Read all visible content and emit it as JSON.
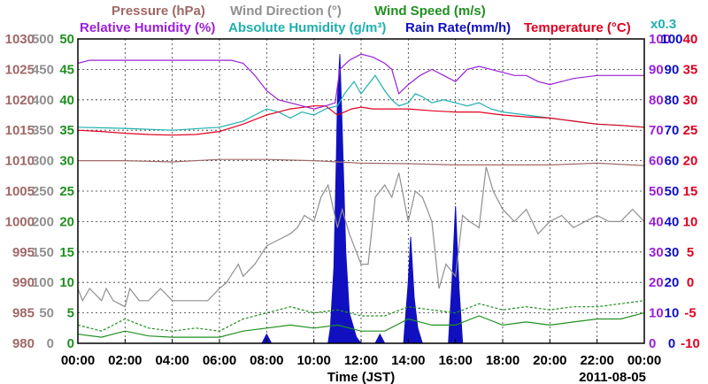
{
  "chart_data": {
    "type": "line",
    "date_label": "2011-08-05",
    "xlabel": "Time (JST)",
    "x_ticks": [
      "00:00",
      "02:00",
      "04:00",
      "06:00",
      "08:00",
      "10:00",
      "12:00",
      "14:00",
      "16:00",
      "18:00",
      "20:00",
      "22:00",
      "00:00"
    ],
    "xlim_hours": [
      0,
      24
    ],
    "grid": true,
    "legend": {
      "row1": [
        {
          "key": "pressure",
          "label": "Pressure (hPa)",
          "color": "#a06868"
        },
        {
          "key": "wind_dir",
          "label": "Wind Direction (°)",
          "color": "#909090"
        },
        {
          "key": "wind_speed",
          "label": "Wind Speed (m/s)",
          "color": "#209020"
        }
      ],
      "row2": [
        {
          "key": "rh",
          "label": "Relative Humidity (%)",
          "color": "#9a20d8"
        },
        {
          "key": "ah",
          "label": "Absolute Humidity (g/m³)",
          "color": "#20b0b0"
        },
        {
          "key": "rain",
          "label": "Rain Rate(mm/h)",
          "color": "#1010c0"
        },
        {
          "key": "temp",
          "label": "Temperature (°C)",
          "color": "#e00020"
        }
      ],
      "note": "x0.3"
    },
    "axes": [
      {
        "key": "pressure",
        "side": "left",
        "color": "#a06868",
        "ylim": [
          980,
          1030
        ],
        "ticks": [
          "980",
          "985",
          "990",
          "995",
          "1000",
          "1005",
          "1010",
          "1015",
          "1020",
          "1025",
          "1030"
        ]
      },
      {
        "key": "wind_dir",
        "side": "left",
        "color": "#909090",
        "ylim": [
          0,
          500
        ],
        "ticks": [
          "0",
          "50",
          "100",
          "150",
          "200",
          "250",
          "300",
          "350",
          "400",
          "450",
          "500"
        ]
      },
      {
        "key": "wind_speed",
        "side": "left",
        "color": "#209020",
        "ylim": [
          0,
          50
        ],
        "ticks": [
          "0",
          "5",
          "10",
          "15",
          "20",
          "25",
          "30",
          "35",
          "40",
          "45",
          "50"
        ]
      },
      {
        "key": "rh",
        "side": "right",
        "color": "#9a20d8",
        "ylim": [
          0,
          100
        ],
        "ticks": [
          "0",
          "10",
          "20",
          "30",
          "40",
          "50",
          "60",
          "70",
          "80",
          "90",
          "100"
        ]
      },
      {
        "key": "rain",
        "side": "right",
        "color": "#1010c0",
        "ylim": [
          0,
          100
        ],
        "ticks": [
          "0",
          "10",
          "20",
          "30",
          "40",
          "50",
          "60",
          "70",
          "80",
          "90",
          "100"
        ]
      },
      {
        "key": "temp",
        "side": "right",
        "color": "#e00020",
        "ylim": [
          -10,
          40
        ],
        "ticks": [
          "-10",
          "-5",
          "0",
          "5",
          "10",
          "15",
          "20",
          "25",
          "30",
          "35",
          "40"
        ]
      }
    ],
    "series": [
      {
        "key": "pressure",
        "axis": "pressure",
        "style": "solid",
        "x": [
          0,
          2,
          4,
          6,
          8,
          10,
          12,
          14,
          16,
          18,
          20,
          22,
          24
        ],
        "y": [
          1010,
          1010,
          1009.8,
          1010.2,
          1010.2,
          1010,
          1009.6,
          1009.5,
          1009.3,
          1009.3,
          1009.3,
          1009.6,
          1009.2
        ]
      },
      {
        "key": "wind_dir",
        "axis": "wind_dir",
        "style": "solid",
        "x": [
          0,
          0.2,
          0.5,
          1,
          1.2,
          1.5,
          2,
          2.2,
          2.6,
          3,
          3.5,
          4,
          4.5,
          5,
          5.5,
          6,
          6.3,
          6.8,
          7,
          7.5,
          8,
          8.5,
          9,
          9.3,
          9.6,
          10,
          10.3,
          10.6,
          11,
          11.2,
          11.5,
          12,
          12.3,
          12.6,
          13,
          13.3,
          13.6,
          14,
          14.3,
          14.6,
          15,
          15.3,
          15.6,
          16,
          16.3,
          16.6,
          17,
          17.3,
          17.6,
          18,
          18.5,
          19,
          19.5,
          20,
          20.5,
          21,
          21.5,
          22,
          22.5,
          23,
          23.5,
          24
        ],
        "y": [
          90,
          70,
          90,
          70,
          90,
          70,
          60,
          90,
          70,
          70,
          90,
          70,
          70,
          70,
          70,
          90,
          100,
          130,
          110,
          130,
          160,
          170,
          180,
          190,
          210,
          200,
          240,
          260,
          190,
          220,
          180,
          130,
          130,
          240,
          260,
          240,
          280,
          200,
          250,
          240,
          200,
          90,
          130,
          110,
          210,
          200,
          190,
          290,
          250,
          220,
          200,
          220,
          180,
          200,
          210,
          190,
          200,
          210,
          200,
          200,
          220,
          200
        ]
      },
      {
        "key": "wind_speed",
        "axis": "wind_speed",
        "style": "solid",
        "x": [
          0,
          1,
          2,
          3,
          4,
          5,
          6,
          7,
          8,
          9,
          10,
          11,
          12,
          13,
          14,
          15,
          16,
          17,
          18,
          19,
          20,
          21,
          22,
          23,
          24
        ],
        "y": [
          1.5,
          1.0,
          2.0,
          1.2,
          1.0,
          1.0,
          1.0,
          2.0,
          2.5,
          3.0,
          2.5,
          3.0,
          2.0,
          2.0,
          4.0,
          3.0,
          3.0,
          4.5,
          3.0,
          3.5,
          3.0,
          3.5,
          4.0,
          4.0,
          5.0
        ]
      },
      {
        "key": "wind_gust",
        "axis": "wind_speed",
        "style": "dashed",
        "x": [
          0,
          1,
          2,
          3,
          4,
          5,
          6,
          7,
          8,
          9,
          10,
          11,
          12,
          13,
          14,
          15,
          16,
          17,
          18,
          19,
          20,
          21,
          22,
          23,
          24
        ],
        "y": [
          3.0,
          2.0,
          4.0,
          2.5,
          2.0,
          2.5,
          2.0,
          4.0,
          5.0,
          6.0,
          5.0,
          5.5,
          4.5,
          4.5,
          6.0,
          5.5,
          5.0,
          6.5,
          5.5,
          6.0,
          5.5,
          6.0,
          6.0,
          6.5,
          7.0
        ]
      },
      {
        "key": "rh",
        "axis": "rh",
        "style": "solid",
        "x": [
          0,
          0.5,
          2,
          4,
          6,
          6.5,
          7,
          7.5,
          8,
          8.5,
          9,
          9.5,
          10,
          10.5,
          10.9,
          11.1,
          11.5,
          12,
          12.5,
          13,
          13.3,
          13.6,
          14,
          14.5,
          15,
          15.5,
          16,
          16.5,
          17,
          17.5,
          18,
          18.5,
          19,
          19.5,
          20,
          21,
          22,
          23,
          24
        ],
        "y": [
          92,
          93,
          93,
          93,
          93,
          93,
          92,
          88,
          83,
          80,
          79,
          78,
          77,
          78,
          79,
          90,
          93,
          95,
          94,
          92,
          90,
          82,
          85,
          88,
          90,
          88,
          86,
          90,
          91,
          90,
          89,
          88,
          88,
          86,
          85,
          87,
          88,
          88,
          88
        ]
      },
      {
        "key": "ah",
        "axis": "pressure",
        "style": "solid",
        "x": [
          0,
          2,
          4,
          6,
          7,
          7.5,
          8,
          8.5,
          9,
          9.5,
          10,
          10.5,
          11,
          11.3,
          11.7,
          12,
          12.3,
          12.6,
          13,
          13.3,
          13.6,
          14,
          14.3,
          14.6,
          15,
          15.5,
          16,
          16.5,
          17,
          17.5,
          18,
          19,
          20,
          21,
          22,
          23,
          24
        ],
        "y": [
          1015.5,
          1015.3,
          1015.0,
          1015.5,
          1016.5,
          1017.5,
          1018.5,
          1018.0,
          1017.0,
          1018.0,
          1017.5,
          1018.5,
          1019.0,
          1021.0,
          1023.0,
          1021.0,
          1022.5,
          1024.0,
          1021.5,
          1020.0,
          1019.0,
          1019.5,
          1021.0,
          1020.5,
          1019.5,
          1020.0,
          1019.5,
          1019.0,
          1019.5,
          1018.5,
          1018.0,
          1017.5,
          1017.0,
          1016.5,
          1016.0,
          1015.8,
          1015.5
        ]
      },
      {
        "key": "temp",
        "axis": "temp",
        "style": "solid",
        "x": [
          0,
          1,
          2,
          3,
          4,
          5,
          6,
          7,
          8,
          9,
          10,
          10.5,
          11,
          11.3,
          11.6,
          12,
          12.5,
          13,
          14,
          15,
          16,
          17,
          18,
          19,
          20,
          21,
          22,
          23,
          24
        ],
        "y": [
          25.0,
          24.8,
          24.5,
          24.3,
          24.2,
          24.3,
          24.8,
          26.0,
          27.5,
          28.5,
          29.0,
          29.0,
          27.5,
          28.0,
          28.5,
          28.8,
          28.5,
          28.5,
          28.5,
          28.2,
          28.0,
          28.0,
          27.5,
          27.2,
          27.0,
          26.5,
          26.0,
          25.8,
          25.5
        ]
      },
      {
        "key": "rain",
        "axis": "rain",
        "style": "area",
        "x": [
          0,
          7.8,
          8.0,
          8.2,
          10.6,
          10.7,
          10.85,
          10.95,
          11.0,
          11.1,
          11.2,
          11.35,
          11.5,
          11.8,
          12.0,
          12.6,
          12.8,
          13.0,
          13.8,
          14.0,
          14.1,
          14.25,
          14.4,
          14.6,
          15.7,
          15.85,
          16.0,
          16.15,
          16.3,
          24
        ],
        "y": [
          0,
          0,
          3,
          0,
          0,
          5,
          25,
          60,
          80,
          95,
          70,
          30,
          10,
          2,
          0,
          0,
          3,
          0,
          0,
          20,
          35,
          15,
          5,
          0,
          0,
          20,
          45,
          18,
          0,
          0
        ]
      }
    ]
  }
}
